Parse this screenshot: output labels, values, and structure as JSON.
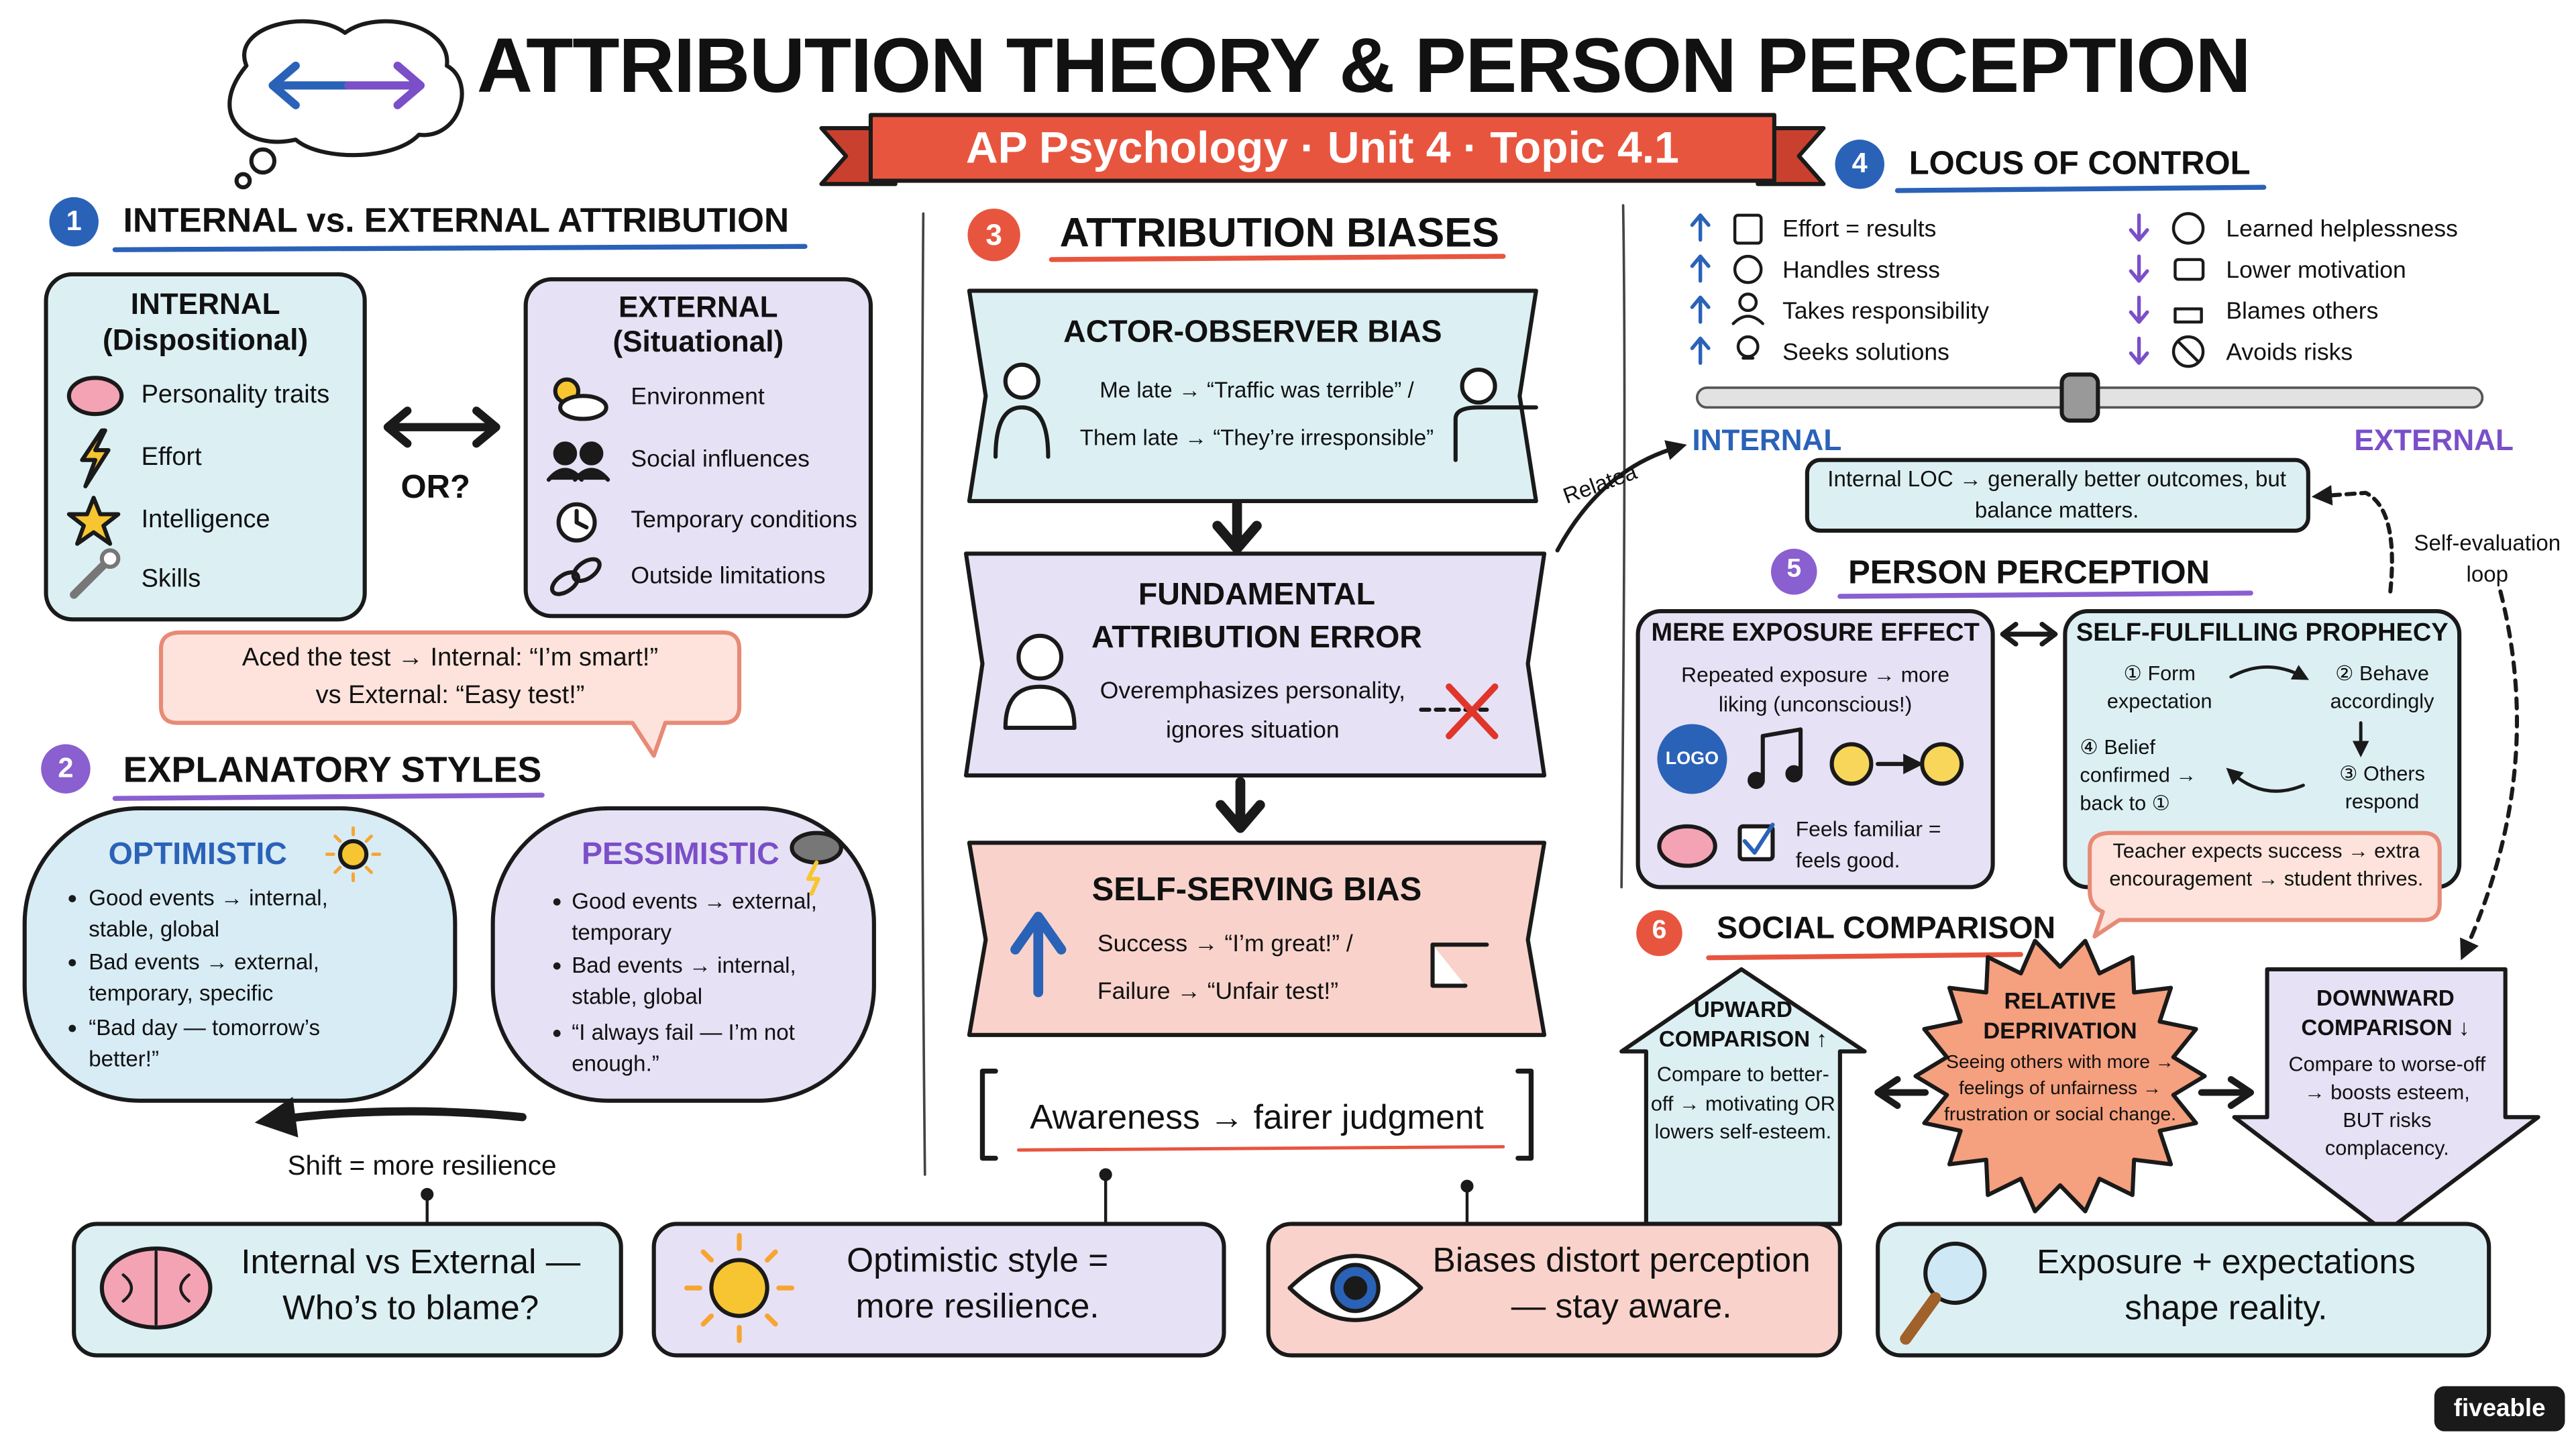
{
  "header": {
    "title": "ATTRIBUTION THEORY & PERSON PERCEPTION",
    "subtitle": "AP Psychology · Unit 4 · Topic 4.1"
  },
  "sections": [
    {
      "number": "1",
      "title": "INTERNAL vs. EXTERNAL ATTRIBUTION"
    },
    {
      "number": "2",
      "title": "EXPLANATORY STYLES"
    },
    {
      "number": "3",
      "title": "ATTRIBUTION BIASES"
    },
    {
      "number": "4",
      "title": "LOCUS OF CONTROL"
    },
    {
      "number": "5",
      "title": "PERSON PERCEPTION"
    },
    {
      "number": "6",
      "title": "SOCIAL COMPARISON"
    }
  ],
  "attribution": {
    "internal": {
      "title": "INTERNAL",
      "subtitle": "(Dispositional)",
      "items": [
        "Personality traits",
        "Effort",
        "Intelligence",
        "Skills"
      ]
    },
    "connector": "OR?",
    "external": {
      "title": "EXTERNAL",
      "subtitle": "(Situational)",
      "items": [
        "Environment",
        "Social influences",
        "Temporary conditions",
        "Outside limitations"
      ]
    },
    "example": [
      "Aced the test → Internal: “I’m smart!”",
      "vs External: “Easy test!”"
    ]
  },
  "explanatory_styles": {
    "optimistic": {
      "title": "OPTIMISTIC",
      "bullets": [
        "Good events → internal, stable, global",
        "Bad events → external, temporary, specific",
        "“Bad day — tomorrow’s better!”"
      ]
    },
    "pessimistic": {
      "title": "PESSIMISTIC",
      "bullets": [
        "Good events → external, temporary",
        "Bad events → internal, stable, global",
        "“I always fail — I’m not enough.”"
      ]
    },
    "shift": "Shift = more resilience"
  },
  "biases": {
    "actor_observer": {
      "title": "ACTOR-OBSERVER BIAS",
      "lines": [
        "Me late → “Traffic was terrible” /",
        "Them late → “They’re irresponsible”"
      ]
    },
    "fundamental_error": {
      "title": "FUNDAMENTAL ATTRIBUTION ERROR",
      "text": "Overemphasizes personality, ignores situation"
    },
    "self_serving": {
      "title": "SELF-SERVING BIAS",
      "lines": [
        "Success → “I’m great!” /",
        "Failure → “Unfair test!”"
      ]
    },
    "awareness": "Awareness → fairer judgment",
    "relation": "Relatea"
  },
  "locus_of_control": {
    "internal_traits": [
      "Effort = results",
      "Handles stress",
      "Takes responsibility",
      "Seeks solutions"
    ],
    "external_traits": [
      "Learned helplessness",
      "Lower motivation",
      "Blames others",
      "Avoids risks"
    ],
    "scale_left": "INTERNAL",
    "scale_right": "EXTERNAL",
    "note": "Internal LOC → generally better outcomes, but balance matters.",
    "loop": "Self-evaluation loop"
  },
  "person_perception": {
    "mere_exposure": {
      "title": "MERE EXPOSURE EFFECT",
      "text": "Repeated exposure → more liking (unconscious!)",
      "logo": "LOGO",
      "caption": "Feels familiar = feels good."
    },
    "prophecy": {
      "title": "SELF-FULFILLING PROPHECY",
      "steps": [
        "① Form expectation",
        "② Behave accordingly",
        "③ Others respond",
        "④ Belief confirmed → back to ①"
      ],
      "example": "Teacher expects success → extra encouragement → student thrives."
    }
  },
  "social_comparison": {
    "upward": {
      "title": "UPWARD COMPARISON ↑",
      "text": "Compare to better-off → motivating OR lowers self-esteem."
    },
    "relative": {
      "title": "RELATIVE DEPRIVATION",
      "text": "Seeing others with more → feelings of unfairness → frustration or social change."
    },
    "downward": {
      "title": "DOWNWARD COMPARISON ↓",
      "text": "Compare to worse-off → boosts esteem, BUT risks complacency."
    }
  },
  "takeaways": [
    "Internal vs External — Who’s to blame?",
    "Optimistic style = more resilience.",
    "Biases distort perception — stay aware.",
    "Exposure + expectations shape reality."
  ],
  "brand": "fiveable"
}
